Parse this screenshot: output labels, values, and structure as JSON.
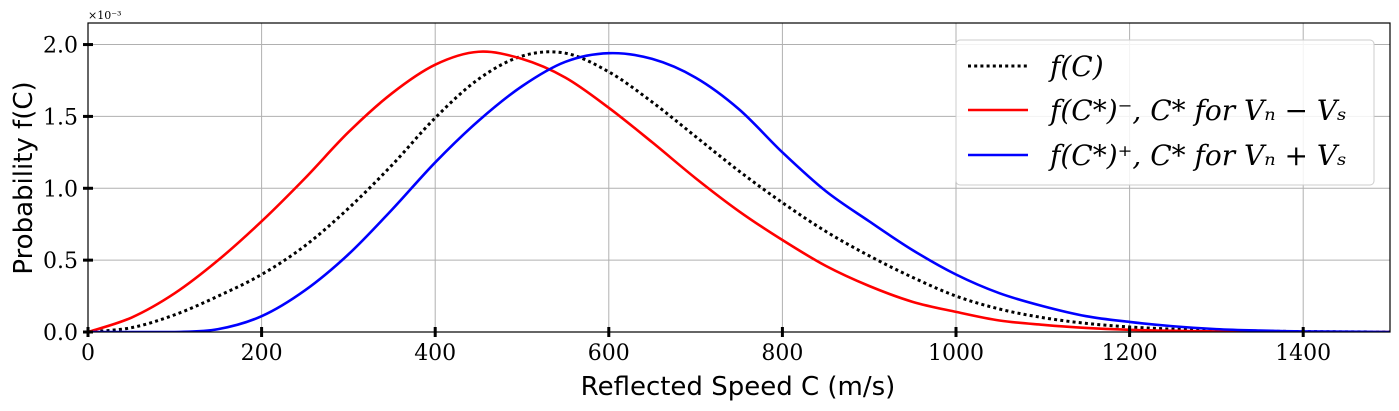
{
  "chart_data": {
    "type": "line",
    "title": "",
    "xlabel": "Reflected Speed C (m/s)",
    "ylabel": "Probability f(C)",
    "xlim": [
      0,
      1500
    ],
    "ylim": [
      0,
      2.15
    ],
    "y_scale_label": "×10⁻³",
    "grid": true,
    "legend_position": "top-right",
    "x_ticks": [
      "0",
      "200",
      "400",
      "600",
      "800",
      "1000",
      "1200",
      "1400"
    ],
    "y_ticks": [
      "0.0",
      "0.5",
      "1.0",
      "1.5",
      "2.0"
    ],
    "x": [
      0,
      50,
      100,
      150,
      200,
      250,
      300,
      350,
      400,
      450,
      500,
      550,
      600,
      650,
      700,
      750,
      800,
      850,
      900,
      950,
      1000,
      1050,
      1100,
      1150,
      1200,
      1250,
      1300,
      1350,
      1400,
      1450,
      1500
    ],
    "series": [
      {
        "name": "f(C)",
        "legend": "f(C)",
        "color": "#000000",
        "style": "dotted",
        "values": [
          0.0,
          0.03,
          0.12,
          0.25,
          0.4,
          0.6,
          0.86,
          1.16,
          1.49,
          1.76,
          1.92,
          1.94,
          1.81,
          1.6,
          1.36,
          1.12,
          0.9,
          0.7,
          0.53,
          0.38,
          0.25,
          0.16,
          0.1,
          0.06,
          0.035,
          0.02,
          0.012,
          0.006,
          0.003,
          0.001,
          0.0
        ]
      },
      {
        "name": "f(C*)-",
        "legend": "f(C*)⁻,  C* for Vₙ − Vₛ",
        "color": "#ff0000",
        "style": "solid",
        "values": [
          0.0,
          0.1,
          0.27,
          0.5,
          0.77,
          1.07,
          1.39,
          1.66,
          1.86,
          1.95,
          1.9,
          1.77,
          1.56,
          1.32,
          1.07,
          0.84,
          0.64,
          0.46,
          0.32,
          0.21,
          0.14,
          0.08,
          0.05,
          0.028,
          0.015,
          0.008,
          0.004,
          0.002,
          0.001,
          0.0,
          0.0
        ]
      },
      {
        "name": "f(C*)+",
        "legend": "f(C*)⁺,  C* for Vₙ + Vₛ",
        "color": "#0000ff",
        "style": "solid",
        "values": [
          0.0,
          0.0,
          0.0,
          0.02,
          0.11,
          0.29,
          0.54,
          0.85,
          1.18,
          1.47,
          1.71,
          1.88,
          1.94,
          1.9,
          1.77,
          1.55,
          1.25,
          0.98,
          0.77,
          0.57,
          0.4,
          0.27,
          0.18,
          0.11,
          0.07,
          0.04,
          0.02,
          0.01,
          0.004,
          0.002,
          0.0
        ]
      }
    ]
  }
}
